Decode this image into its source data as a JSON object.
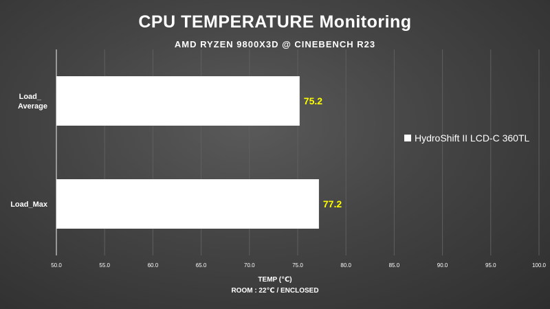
{
  "chart_data": {
    "type": "bar",
    "orientation": "horizontal",
    "title": "CPU TEMPERATURE Monitoring",
    "subtitle": "AMD RYZEN 9800X3D @ CINEBENCH R23",
    "xlabel": "TEMP (℃)",
    "note": "ROOM : 22℃ / ENCLOSED",
    "categories": [
      "Load_\nAverage",
      "Load_Max"
    ],
    "series": [
      {
        "name": "HydroShift II LCD-C 360TL",
        "values": [
          75.2,
          77.2
        ],
        "color": "#ffffff"
      }
    ],
    "value_label_color": "#ffff00",
    "xlim": [
      50.0,
      100.0
    ],
    "xticks": [
      "50.0",
      "55.0",
      "60.0",
      "65.0",
      "70.0",
      "75.0",
      "80.0",
      "85.0",
      "90.0",
      "95.0",
      "100.0"
    ],
    "grid": true,
    "legend": "right"
  }
}
